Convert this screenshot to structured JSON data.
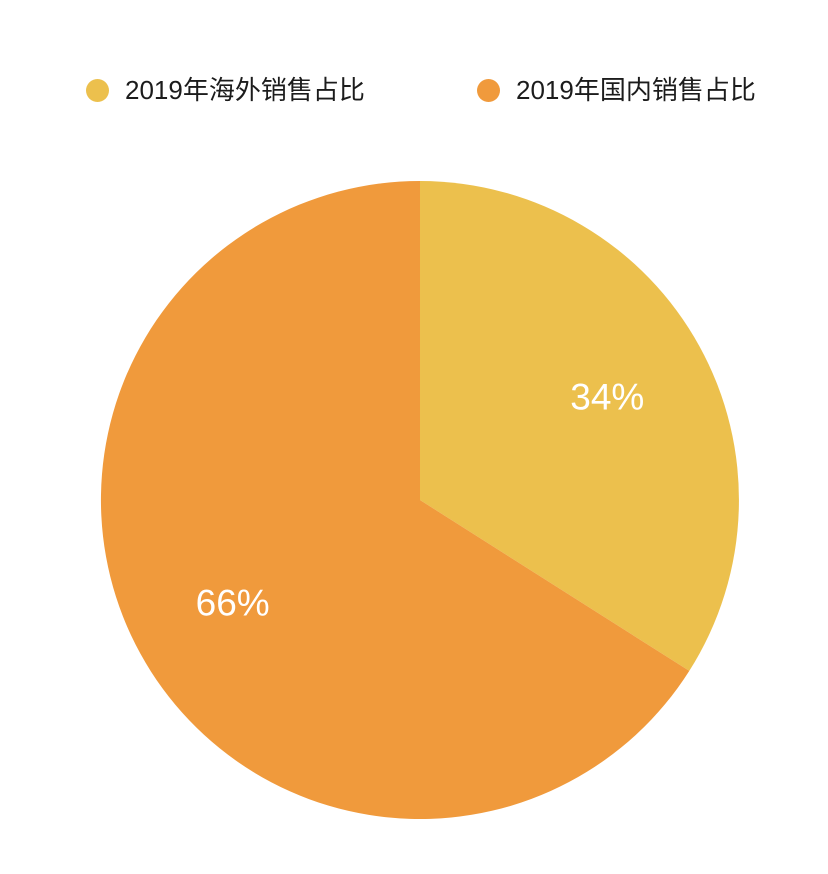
{
  "page": {
    "background_color": "#ffffff"
  },
  "legend": {
    "position": "top",
    "items": [
      {
        "id": "overseas",
        "label": "2019年海外销售占比",
        "color": "#ECC04D"
      },
      {
        "id": "domestic",
        "label": "2019年国内销售占比",
        "color": "#F09A3C"
      }
    ]
  },
  "chart_data": {
    "type": "pie",
    "title": "",
    "series": [
      {
        "id": "overseas",
        "name": "2019年海外销售占比",
        "value": 34,
        "label": "34%",
        "color": "#ECC04D"
      },
      {
        "id": "domestic",
        "name": "2019年国内销售占比",
        "value": 66,
        "label": "66%",
        "color": "#F09A3C"
      }
    ],
    "total": 100,
    "start_angle_deg": -90,
    "direction": "clockwise",
    "center": {
      "x": 420,
      "y": 500
    },
    "radius": 319,
    "label_radius_ratio": 0.67,
    "label_color": "#ffffff",
    "legend_position": "top",
    "grid": false
  }
}
